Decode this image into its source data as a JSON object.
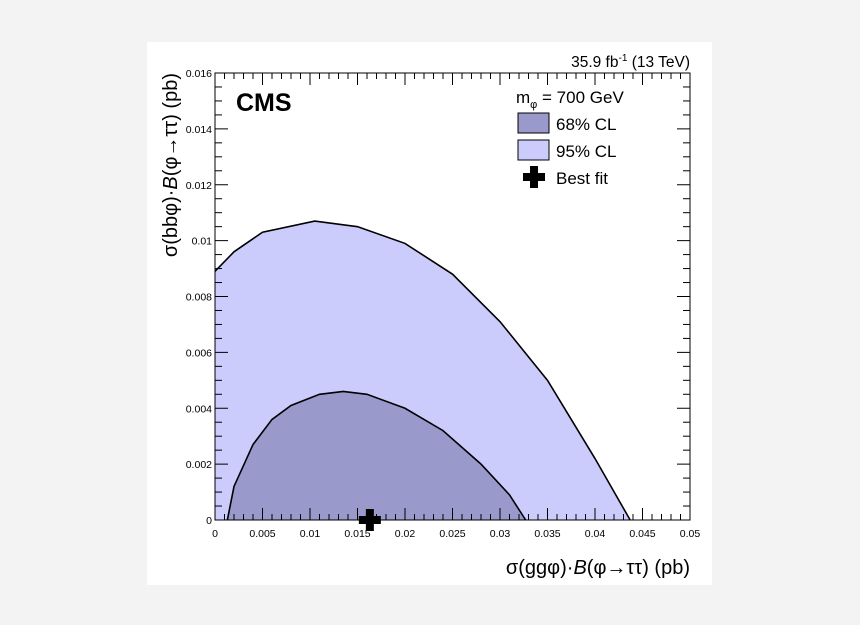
{
  "chart_data": {
    "type": "area",
    "lumi_label": "35.9 fb",
    "lumi_exp": "-1",
    "lumi_energy": "(13 TeV)",
    "experiment": "CMS",
    "legend_title": "m",
    "legend_title_sub": "φ",
    "legend_title_rest": " = 700 GeV",
    "legend_placement": "top-right",
    "xlabel_parts": [
      "σ(ggφ)·",
      "B",
      "(φ→ττ) (pb)"
    ],
    "ylabel_parts": [
      "σ(bbφ)·",
      "B",
      "(φ→ττ) (pb)"
    ],
    "xlim": [
      0,
      0.05
    ],
    "ylim": [
      0,
      0.016
    ],
    "xticks": [
      "0",
      "0.005",
      "0.01",
      "0.015",
      "0.02",
      "0.025",
      "0.03",
      "0.035",
      "0.04",
      "0.045",
      "0.05"
    ],
    "yticks": [
      "0",
      "0.002",
      "0.004",
      "0.006",
      "0.008",
      "0.01",
      "0.012",
      "0.014",
      "0.016"
    ],
    "grid": false,
    "series": [
      {
        "name": "95% CL",
        "color": "#ccccfc",
        "points": [
          [
            0,
            0
          ],
          [
            0,
            0.0089
          ],
          [
            0.002,
            0.0096
          ],
          [
            0.005,
            0.0103
          ],
          [
            0.0105,
            0.0107
          ],
          [
            0.015,
            0.0105
          ],
          [
            0.02,
            0.0099
          ],
          [
            0.025,
            0.0088
          ],
          [
            0.03,
            0.0071
          ],
          [
            0.035,
            0.005
          ],
          [
            0.04,
            0.0022
          ],
          [
            0.0437,
            0
          ]
        ]
      },
      {
        "name": "68% CL",
        "color": "#9999cc",
        "points": [
          [
            0.0013,
            0
          ],
          [
            0.002,
            0.0012
          ],
          [
            0.004,
            0.0027
          ],
          [
            0.006,
            0.0036
          ],
          [
            0.008,
            0.0041
          ],
          [
            0.011,
            0.0045
          ],
          [
            0.0135,
            0.0046
          ],
          [
            0.016,
            0.0045
          ],
          [
            0.02,
            0.004
          ],
          [
            0.024,
            0.0032
          ],
          [
            0.028,
            0.002
          ],
          [
            0.031,
            0.0009
          ],
          [
            0.0327,
            0
          ]
        ]
      }
    ],
    "best_fit": {
      "name": "Best fit",
      "x": 0.0163,
      "y": 0
    }
  }
}
